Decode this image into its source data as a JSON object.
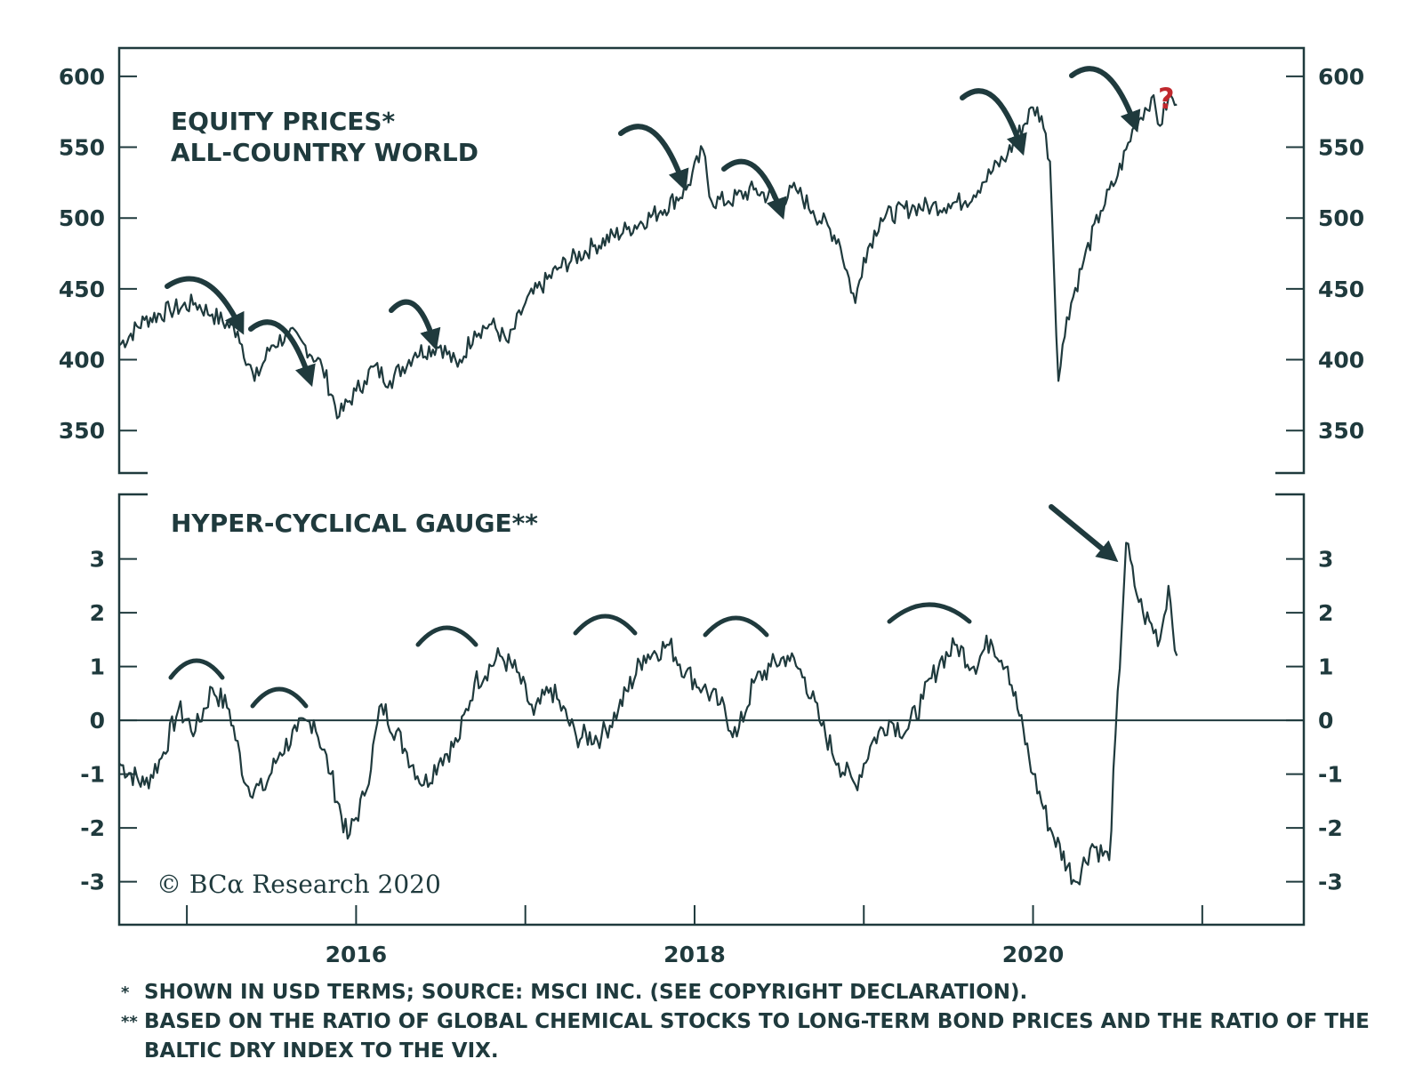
{
  "chart_data": [
    {
      "type": "line",
      "title": "EQUITY PRICES*",
      "subtitle": "ALL-COUNTRY WORLD",
      "ylim": [
        320,
        620
      ],
      "yticks": [
        350,
        400,
        450,
        500,
        550,
        600
      ],
      "ytick_labels": [
        "350",
        "400",
        "450",
        "500",
        "550",
        "600"
      ],
      "x_range": [
        2014.6,
        2021.6
      ],
      "annotation_question": "?",
      "series": [
        {
          "x": [
            2014.6,
            2014.75,
            2014.9,
            2015.05,
            2015.15,
            2015.3,
            2015.4,
            2015.5,
            2015.6,
            2015.7,
            2015.8,
            2015.9,
            2016.0,
            2016.05,
            2016.1,
            2016.2,
            2016.35,
            2016.5,
            2016.6,
            2016.7,
            2016.8,
            2016.9,
            2017.0,
            2017.2,
            2017.4,
            2017.6,
            2017.8,
            2017.95,
            2018.05,
            2018.1,
            2018.2,
            2018.35,
            2018.5,
            2018.6,
            2018.7,
            2018.85,
            2018.95,
            2019.0,
            2019.1,
            2019.3,
            2019.4,
            2019.5,
            2019.6,
            2019.7,
            2019.85,
            2020.0,
            2020.05,
            2020.1,
            2020.15,
            2020.2,
            2020.3,
            2020.4,
            2020.5,
            2020.6,
            2020.7,
            2020.75,
            2020.8,
            2020.85
          ],
          "y": [
            410,
            428,
            435,
            440,
            432,
            420,
            385,
            410,
            418,
            410,
            395,
            360,
            378,
            385,
            395,
            385,
            405,
            410,
            395,
            420,
            425,
            412,
            440,
            465,
            480,
            492,
            505,
            520,
            548,
            512,
            512,
            520,
            512,
            520,
            505,
            485,
            440,
            472,
            500,
            508,
            508,
            510,
            512,
            525,
            545,
            578,
            572,
            540,
            385,
            430,
            470,
            505,
            530,
            565,
            585,
            565,
            585,
            580
          ]
        }
      ]
    },
    {
      "type": "line",
      "title": "HYPER-CYCLICAL GAUGE**",
      "ylim": [
        -3.8,
        4.2
      ],
      "yticks": [
        -3,
        -2,
        -1,
        0,
        1,
        2,
        3
      ],
      "ytick_labels": [
        "-3",
        "-2",
        "-1",
        "0",
        "1",
        "2",
        "3"
      ],
      "x_range": [
        2014.6,
        2021.6
      ],
      "xticks": [
        2016,
        2018,
        2020
      ],
      "xtick_labels": [
        "2016",
        "2018",
        "2020"
      ],
      "series": [
        {
          "x": [
            2014.6,
            2014.75,
            2014.85,
            2014.95,
            2015.05,
            2015.15,
            2015.25,
            2015.35,
            2015.45,
            2015.55,
            2015.65,
            2015.75,
            2015.85,
            2015.95,
            2016.05,
            2016.15,
            2016.3,
            2016.4,
            2016.5,
            2016.6,
            2016.7,
            2016.85,
            2016.95,
            2017.05,
            2017.15,
            2017.3,
            2017.45,
            2017.55,
            2017.7,
            2017.85,
            2017.95,
            2018.05,
            2018.15,
            2018.25,
            2018.35,
            2018.45,
            2018.55,
            2018.65,
            2018.75,
            2018.85,
            2018.95,
            2019.05,
            2019.15,
            2019.25,
            2019.35,
            2019.45,
            2019.55,
            2019.65,
            2019.75,
            2019.85,
            2020.0,
            2020.1,
            2020.25,
            2020.35,
            2020.45,
            2020.55,
            2020.6,
            2020.65,
            2020.75,
            2020.8,
            2020.85
          ],
          "y": [
            -0.8,
            -1.2,
            -0.7,
            0.2,
            -0.2,
            0.6,
            0.2,
            -1.2,
            -1.3,
            -0.6,
            -0.2,
            0.0,
            -1.0,
            -2.2,
            -1.4,
            0.3,
            -0.6,
            -1.2,
            -0.7,
            -0.4,
            0.7,
            1.2,
            0.9,
            0.1,
            0.6,
            -0.3,
            -0.3,
            0.2,
            1.2,
            1.4,
            0.9,
            0.6,
            0.3,
            -0.3,
            0.7,
            1.0,
            1.2,
            0.8,
            -0.1,
            -0.8,
            -1.2,
            -0.4,
            0.0,
            -0.2,
            0.4,
            1.1,
            1.4,
            1.0,
            1.5,
            1.0,
            -1.0,
            -2.0,
            -3.0,
            -2.3,
            -2.6,
            3.3,
            2.5,
            2.0,
            1.5,
            2.5,
            1.2
          ]
        }
      ]
    }
  ],
  "watermark": "© BCα Research 2020",
  "footnotes": [
    {
      "mark": "*",
      "text": "SHOWN IN USD TERMS; SOURCE: MSCI INC. (SEE COPYRIGHT DECLARATION)."
    },
    {
      "mark": "**",
      "text": "BASED ON THE RATIO OF GLOBAL CHEMICAL STOCKS TO LONG-TERM BOND PRICES AND THE RATIO OF THE BALTIC DRY INDEX TO THE VIX."
    }
  ],
  "colors": {
    "ink": "#1f3a3d",
    "question": "#c0282d",
    "line": "#1f3a3d"
  }
}
